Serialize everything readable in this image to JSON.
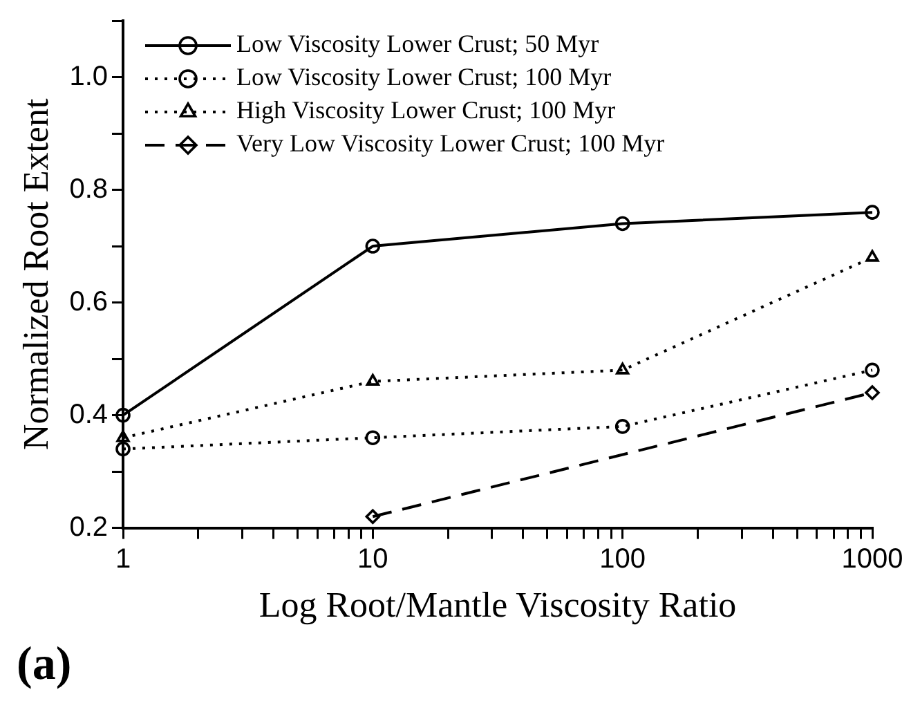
{
  "chart_data": {
    "type": "line",
    "xlabel": "Log Root/Mantle Viscosity Ratio",
    "ylabel": "Normalized Root Extent",
    "log": "x",
    "x": [
      1,
      10,
      100,
      1000
    ],
    "xlim": [
      1,
      1000
    ],
    "xticks": [
      1,
      {
        "value": 2,
        "label": null
      },
      {
        "value": 3,
        "label": null
      },
      {
        "value": 4,
        "label": null
      },
      {
        "value": 5,
        "label": null
      },
      {
        "value": 6,
        "label": null
      },
      {
        "value": 7,
        "label": null
      },
      {
        "value": 8,
        "label": null
      },
      {
        "value": 9,
        "label": null
      },
      10,
      {
        "value": 20,
        "label": null
      },
      {
        "value": 30,
        "label": null
      },
      {
        "value": 40,
        "label": null
      },
      {
        "value": 50,
        "label": null
      },
      {
        "value": 60,
        "label": null
      },
      {
        "value": 70,
        "label": null
      },
      {
        "value": 80,
        "label": null
      },
      {
        "value": 90,
        "label": null
      },
      100,
      {
        "value": 200,
        "label": null
      },
      {
        "value": 300,
        "label": null
      },
      {
        "value": 400,
        "label": null
      },
      {
        "value": 500,
        "label": null
      },
      {
        "value": 600,
        "label": null
      },
      {
        "value": 700,
        "label": null
      },
      {
        "value": 800,
        "label": null
      },
      {
        "value": 900,
        "label": null
      },
      1000
    ],
    "ylim": [
      0.2,
      1.1
    ],
    "yticks": [
      {
        "value": 0.2,
        "label": "0.2"
      },
      {
        "value": 0.3,
        "label": null
      },
      {
        "value": 0.4,
        "label": "0.4"
      },
      {
        "value": 0.5,
        "label": null
      },
      {
        "value": 0.6,
        "label": "0.6"
      },
      {
        "value": 0.7,
        "label": null
      },
      {
        "value": 0.8,
        "label": "0.8"
      },
      {
        "value": 0.9,
        "label": null
      },
      {
        "value": 1.0,
        "label": "1.0"
      },
      {
        "value": 1.1,
        "label": null
      }
    ],
    "grid": false,
    "legend": "top left",
    "series": [
      {
        "name": "Low Viscosity Lower Crust; 50 Myr",
        "color": "#000000",
        "values": [
          0.4,
          0.7,
          0.74,
          0.76
        ],
        "marker": "circle",
        "line_style": "solid"
      },
      {
        "name": "Low Viscosity Lower Crust; 100 Myr",
        "color": "#000000",
        "values": [
          0.34,
          0.36,
          0.38,
          0.48
        ],
        "marker": "circle",
        "line_style": "dotted"
      },
      {
        "name": "High Viscosity Lower Crust; 100 Myr",
        "color": "#000000",
        "values": [
          0.36,
          0.46,
          0.48,
          0.68
        ],
        "marker": "triangle",
        "line_style": "dotted"
      },
      {
        "name": "Very Low Viscosity Lower Crust; 100 Myr",
        "color": "#000000",
        "values": [
          null,
          0.22,
          null,
          0.44
        ],
        "marker": "diamond",
        "line_style": "dashed"
      }
    ],
    "annotations": [
      "(a)"
    ]
  }
}
